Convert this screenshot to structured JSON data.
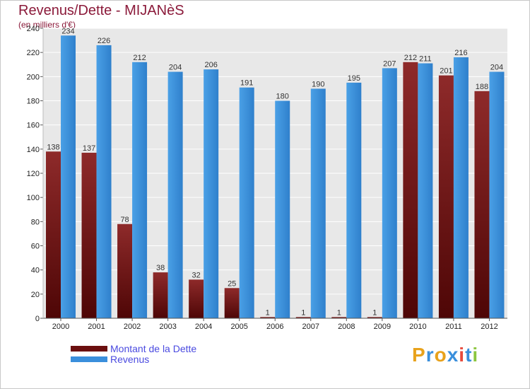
{
  "header": {
    "title": "Revenus/Dette - MIJANèS",
    "subtitle": "(en milliers d'€)"
  },
  "legend": {
    "items": [
      {
        "label": "Montant de la Dette",
        "color": "#7a1a1a"
      },
      {
        "label": "Revenus",
        "color": "#3a8fdc"
      }
    ]
  },
  "logo": {
    "text": "Proxiti",
    "letters": [
      "P",
      "r",
      "o",
      "x",
      "i",
      "t",
      "i"
    ],
    "colors": [
      "#e8a21c",
      "#3a8fdc",
      "#e8a21c",
      "#3a8fdc",
      "#e84a3c",
      "#3a8fdc",
      "#8cc63f"
    ]
  },
  "chart_data": {
    "type": "bar",
    "categories": [
      "2000",
      "2001",
      "2002",
      "2003",
      "2004",
      "2005",
      "2006",
      "2007",
      "2008",
      "2009",
      "2010",
      "2011",
      "2012"
    ],
    "series": [
      {
        "name": "Montant de la Dette",
        "color": "#7a1a1a",
        "values": [
          138,
          137,
          78,
          38,
          32,
          25,
          1,
          1,
          1,
          1,
          212,
          201,
          188
        ]
      },
      {
        "name": "Revenus",
        "color": "#3a8fdc",
        "values": [
          234,
          226,
          212,
          204,
          206,
          191,
          180,
          190,
          195,
          207,
          211,
          216,
          204
        ]
      }
    ],
    "ylim": [
      0,
      240
    ],
    "yticks": [
      0,
      20,
      40,
      60,
      80,
      100,
      120,
      140,
      160,
      180,
      200,
      220,
      240
    ],
    "grid": true
  }
}
